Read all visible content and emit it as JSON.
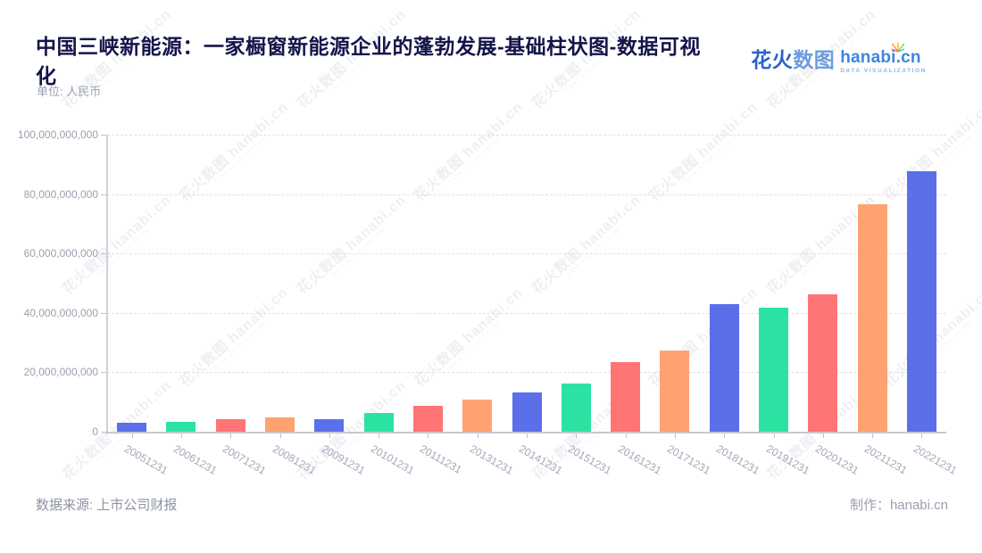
{
  "header": {
    "title_line1": "中国三峡新能源：一家橱窗新能源企业的蓬勃发展-基础柱状图-数据可视",
    "title_line2": "化",
    "unit_label": "单位: 人民币"
  },
  "logo": {
    "cn_bold": "花火",
    "cn_light": "数图",
    "domain": "hanabi.cn",
    "tagline": "DATA VISUALIZATION"
  },
  "footer": {
    "source": "数据来源: 上市公司财报",
    "credit": "制作：hanabi.cn"
  },
  "watermark": {
    "text": "花火数图 hanabi.cn",
    "subtext": "DATA VISUALIZATION"
  },
  "chart_data": {
    "type": "bar",
    "title": "中国三峡新能源：一家橱窗新能源企业的蓬勃发展-基础柱状图-数据可视化",
    "unit": "人民币",
    "xlabel": "",
    "ylabel": "",
    "legend": false,
    "grid": "horizontal-dashed",
    "categories": [
      "20051231",
      "20061231",
      "20071231",
      "20081231",
      "20091231",
      "20101231",
      "20111231",
      "20131231",
      "20141231",
      "20151231",
      "20161231",
      "20171231",
      "20181231",
      "20191231",
      "20201231",
      "20211231",
      "20221231"
    ],
    "values": [
      3000000000,
      3200000000,
      4200000000,
      4700000000,
      4100000000,
      6200000000,
      8800000000,
      10900000000,
      13200000000,
      16200000000,
      23500000000,
      27200000000,
      43000000000,
      41800000000,
      46300000000,
      76600000000,
      87800000000
    ],
    "palette": [
      "#5B6FE8",
      "#2CE2A2",
      "#FF7474",
      "#FFA272"
    ],
    "ylim": [
      0,
      100000000000
    ],
    "y_ticks": [
      "0",
      "20,000,000,000",
      "40,000,000,000",
      "60,000,000,000",
      "80,000,000,000",
      "100,000,000,000"
    ],
    "x_label_rotation_deg": 30
  }
}
